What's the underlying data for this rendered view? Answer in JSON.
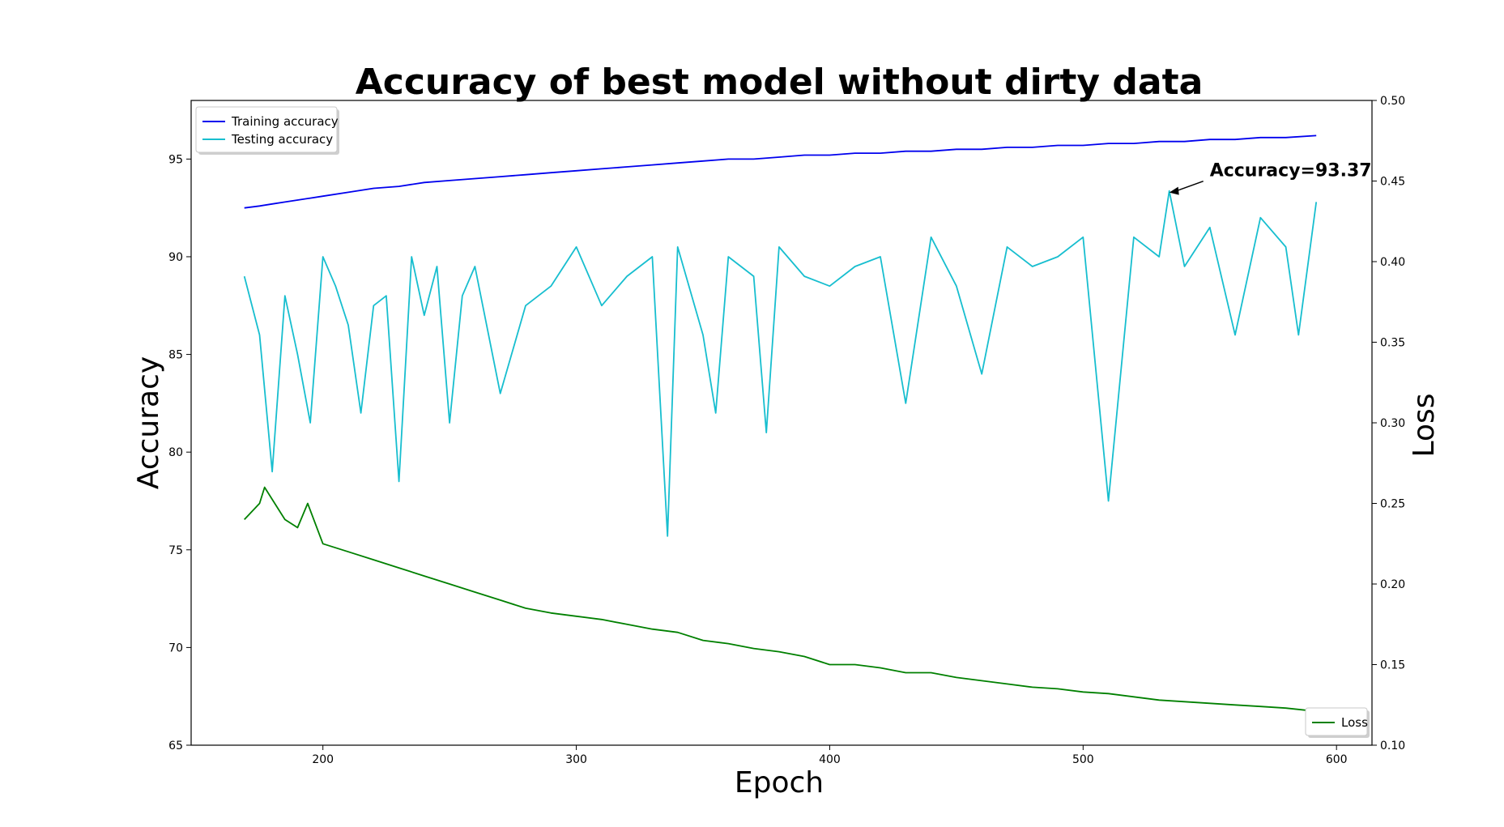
{
  "chart_data": {
    "type": "line",
    "title": "Accuracy of best model without dirty data",
    "xlabel": "Epoch",
    "ylabel": "Accuracy",
    "ylabel_right": "Loss",
    "xlim": [
      148,
      614
    ],
    "ylim": [
      65,
      98
    ],
    "ylim_right": [
      0.1,
      0.5
    ],
    "xticks": [
      200,
      300,
      400,
      500,
      600
    ],
    "yticks": [
      65,
      70,
      75,
      80,
      85,
      90,
      95
    ],
    "yticks_right": [
      "0.10",
      "0.15",
      "0.20",
      "0.25",
      "0.30",
      "0.35",
      "0.40",
      "0.45",
      "0.50"
    ],
    "grid": false,
    "legend_left_placement": "top-left",
    "legend_right_placement": "bottom-right",
    "series": [
      {
        "name": "Training accuracy",
        "axis": "left",
        "color": "#0000ee",
        "x": [
          169,
          175,
          180,
          185,
          190,
          195,
          200,
          210,
          220,
          230,
          240,
          250,
          260,
          270,
          280,
          290,
          300,
          310,
          320,
          330,
          340,
          350,
          360,
          370,
          380,
          390,
          400,
          410,
          420,
          430,
          440,
          450,
          460,
          470,
          480,
          490,
          500,
          510,
          520,
          530,
          540,
          550,
          560,
          570,
          580,
          592
        ],
        "y": [
          92.5,
          92.6,
          92.7,
          92.8,
          92.9,
          93.0,
          93.1,
          93.3,
          93.5,
          93.6,
          93.8,
          93.9,
          94.0,
          94.1,
          94.2,
          94.3,
          94.4,
          94.5,
          94.6,
          94.7,
          94.8,
          94.9,
          95.0,
          95.0,
          95.1,
          95.2,
          95.2,
          95.3,
          95.3,
          95.4,
          95.4,
          95.5,
          95.5,
          95.6,
          95.6,
          95.7,
          95.7,
          95.8,
          95.8,
          95.9,
          95.9,
          96.0,
          96.0,
          96.1,
          96.1,
          96.2
        ]
      },
      {
        "name": "Testing accuracy",
        "axis": "left",
        "color": "#17becf",
        "x": [
          169,
          175,
          180,
          185,
          190,
          195,
          200,
          205,
          210,
          215,
          220,
          225,
          230,
          235,
          240,
          245,
          250,
          255,
          260,
          270,
          280,
          290,
          300,
          310,
          320,
          330,
          336,
          340,
          350,
          355,
          360,
          370,
          375,
          380,
          390,
          400,
          410,
          420,
          430,
          440,
          450,
          460,
          470,
          480,
          490,
          500,
          510,
          520,
          530,
          534,
          540,
          550,
          560,
          570,
          580,
          585,
          592
        ],
        "y": [
          89.0,
          86.0,
          79.0,
          88.0,
          85.0,
          81.5,
          90.0,
          88.5,
          86.5,
          82.0,
          87.5,
          88.0,
          78.5,
          90.0,
          87.0,
          89.5,
          81.5,
          88.0,
          89.5,
          83.0,
          87.5,
          88.5,
          90.5,
          87.5,
          89.0,
          90.0,
          75.7,
          90.5,
          86.0,
          82.0,
          90.0,
          89.0,
          81.0,
          90.5,
          89.0,
          88.5,
          89.5,
          90.0,
          82.5,
          91.0,
          88.5,
          84.0,
          90.5,
          89.5,
          90.0,
          91.0,
          77.5,
          91.0,
          90.0,
          93.37,
          89.5,
          91.5,
          86.0,
          92.0,
          90.5,
          86.0,
          92.8
        ]
      },
      {
        "name": "Loss",
        "axis": "right",
        "color": "#008000",
        "x": [
          169,
          175,
          177,
          185,
          190,
          194,
          200,
          210,
          220,
          230,
          240,
          250,
          260,
          270,
          280,
          290,
          300,
          310,
          320,
          330,
          340,
          350,
          360,
          370,
          380,
          390,
          400,
          410,
          420,
          430,
          440,
          450,
          460,
          470,
          480,
          490,
          500,
          510,
          520,
          530,
          540,
          550,
          560,
          570,
          580,
          592
        ],
        "y": [
          0.24,
          0.25,
          0.26,
          0.24,
          0.235,
          0.25,
          0.225,
          0.22,
          0.215,
          0.21,
          0.205,
          0.2,
          0.195,
          0.19,
          0.185,
          0.182,
          0.18,
          0.178,
          0.175,
          0.172,
          0.17,
          0.165,
          0.163,
          0.16,
          0.158,
          0.155,
          0.15,
          0.15,
          0.148,
          0.145,
          0.145,
          0.142,
          0.14,
          0.138,
          0.136,
          0.135,
          0.133,
          0.132,
          0.13,
          0.128,
          0.127,
          0.126,
          0.125,
          0.124,
          0.123,
          0.121
        ]
      }
    ],
    "annotations": [
      {
        "text": "Accuracy=93.37",
        "x": 534,
        "y": 93.37
      }
    ]
  }
}
